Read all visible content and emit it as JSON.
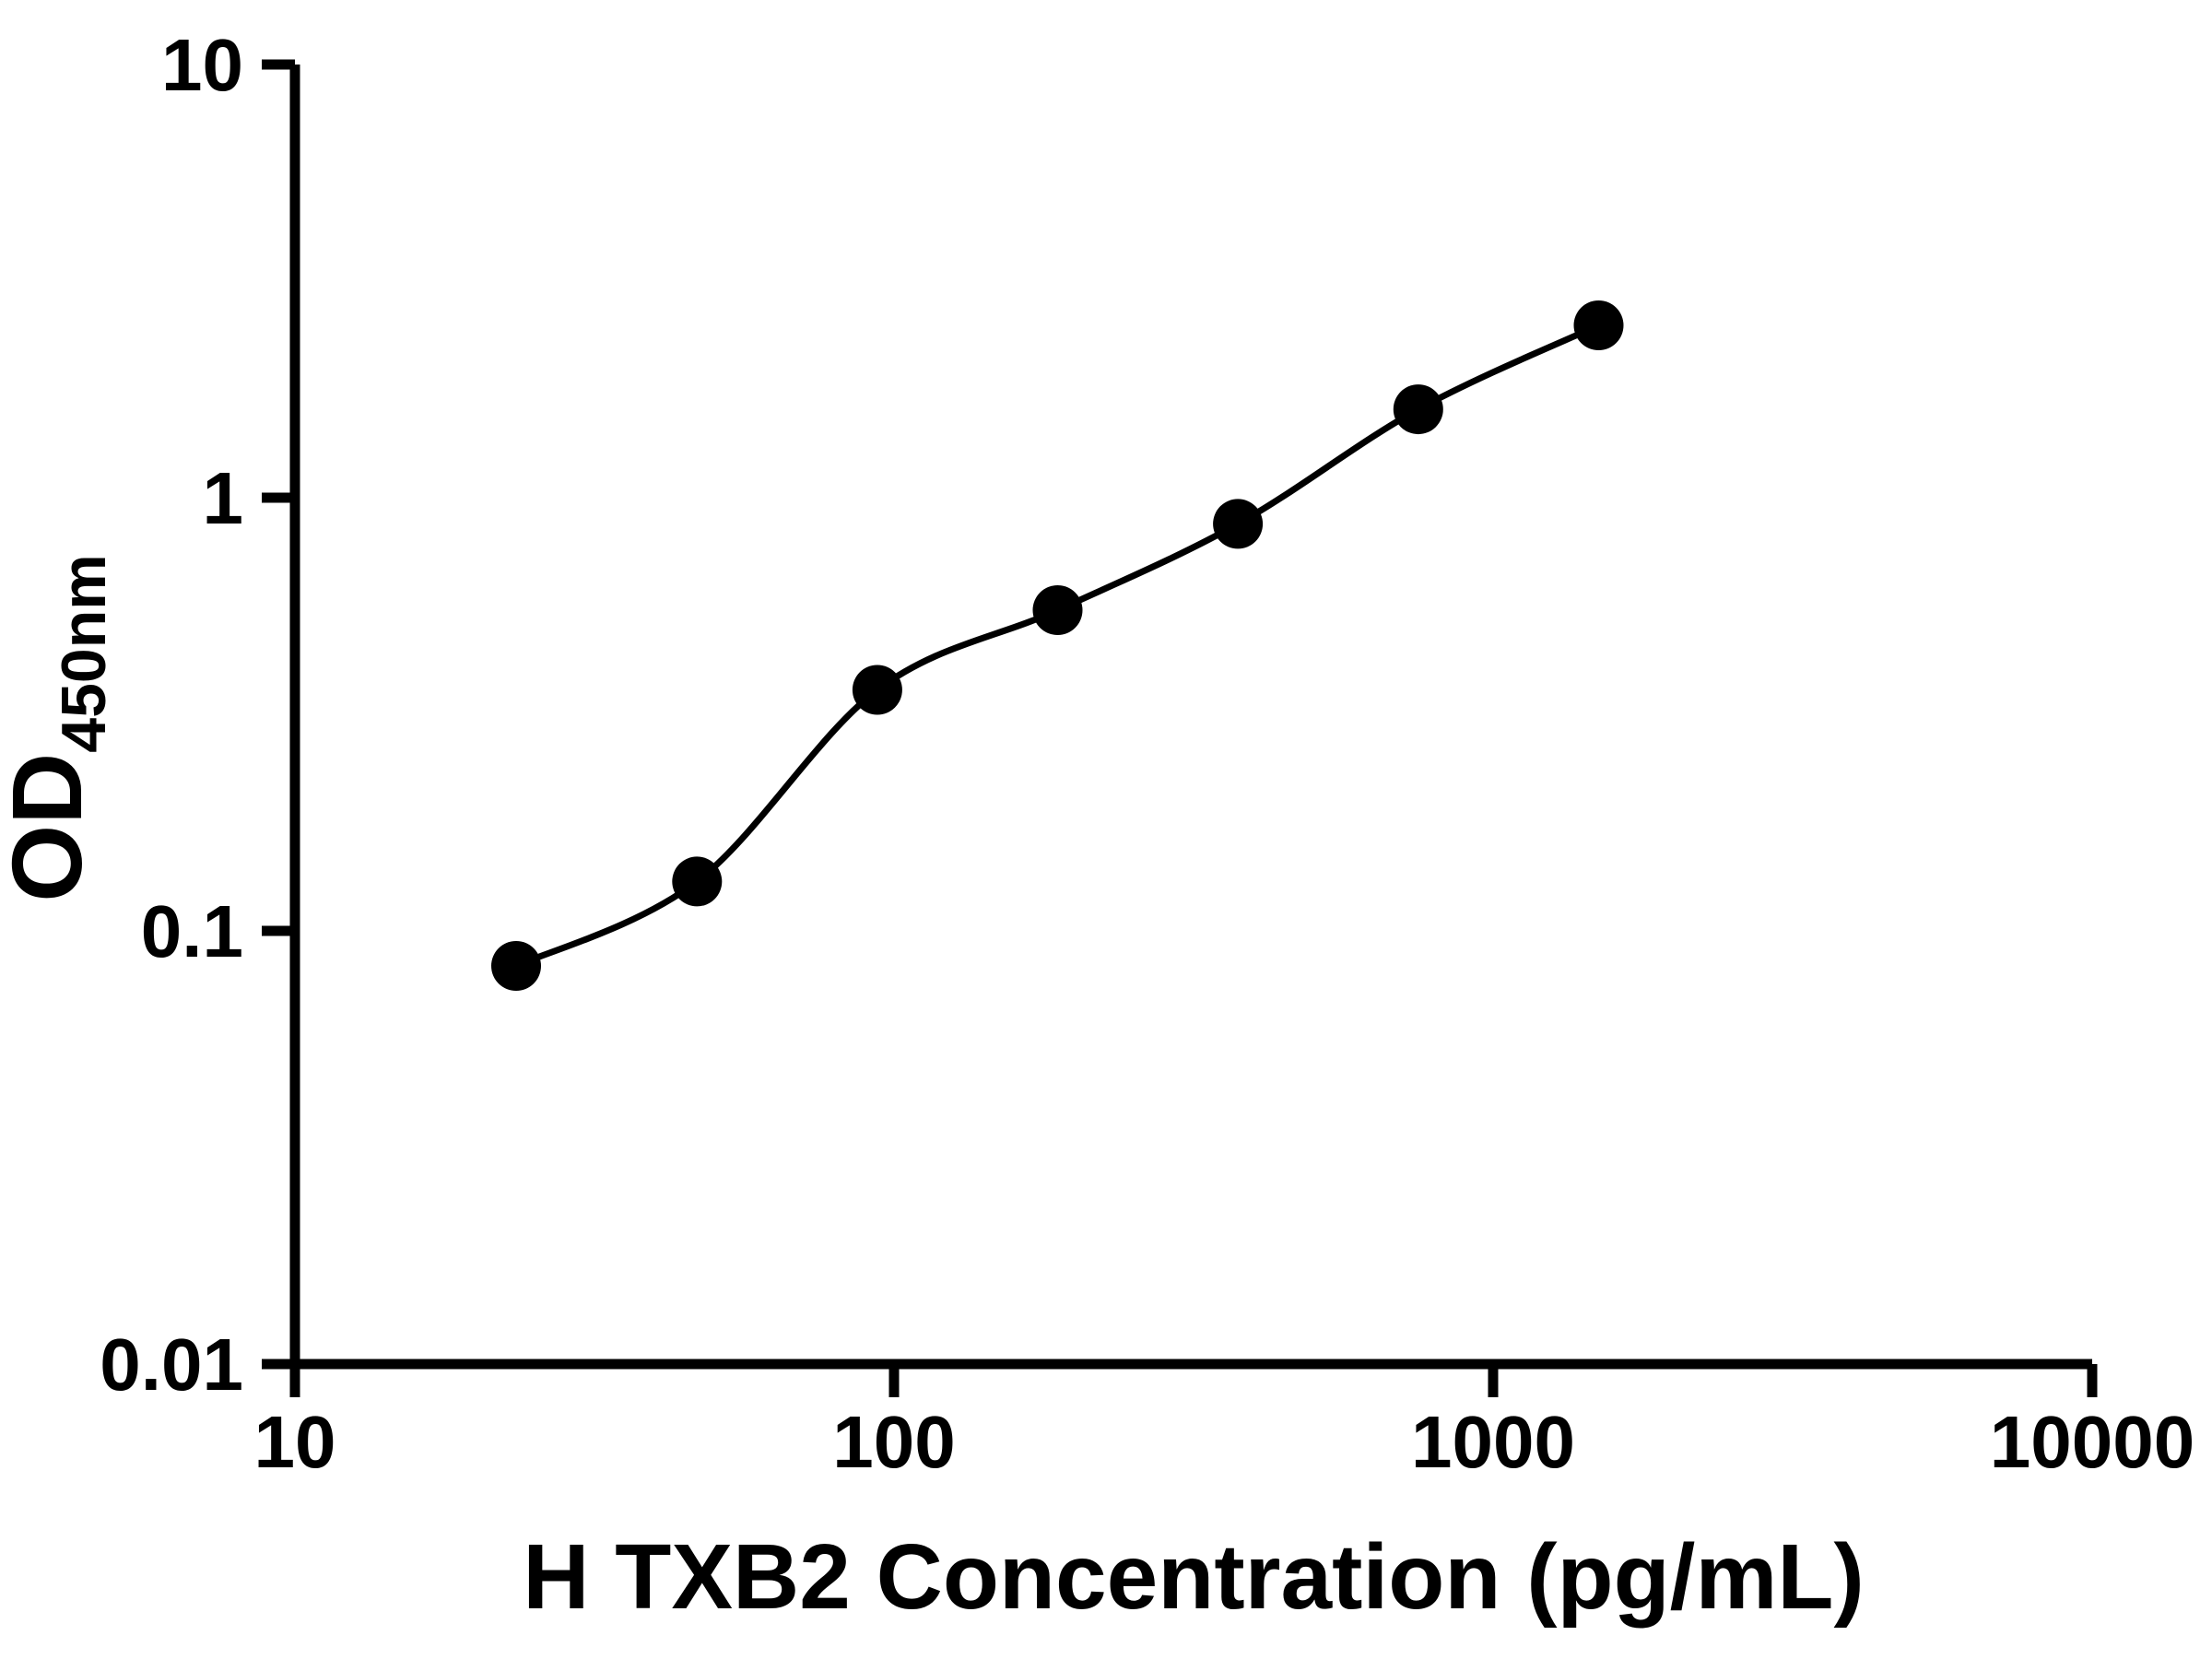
{
  "figure": {
    "background_color": "#ffffff",
    "axis_color": "#000000",
    "marker_color": "#000000",
    "curve_color": "#000000"
  },
  "chart_data": {
    "type": "scatter",
    "title": "",
    "xlabel": "H TXB2 Concentration (pg/mL)",
    "ylabel_main": "OD",
    "ylabel_sub": "450nm",
    "x_scale": "log",
    "y_scale": "log",
    "xlim": [
      10,
      10000
    ],
    "ylim": [
      0.01,
      10
    ],
    "x_ticks": [
      10,
      100,
      1000,
      10000
    ],
    "x_tick_labels": [
      "10",
      "100",
      "1000",
      "10000"
    ],
    "y_ticks": [
      0.01,
      0.1,
      1,
      10
    ],
    "y_tick_labels": [
      "0.01",
      "0.1",
      "1",
      "10"
    ],
    "grid": false,
    "legend": false,
    "series": [
      {
        "marker": "filled-circle",
        "color": "#000000",
        "fit": "smooth-curve",
        "x": [
          23.4,
          46.9,
          93.8,
          187.5,
          375,
          750,
          1500
        ],
        "y": [
          0.083,
          0.13,
          0.36,
          0.55,
          0.87,
          1.6,
          2.5
        ]
      }
    ]
  }
}
